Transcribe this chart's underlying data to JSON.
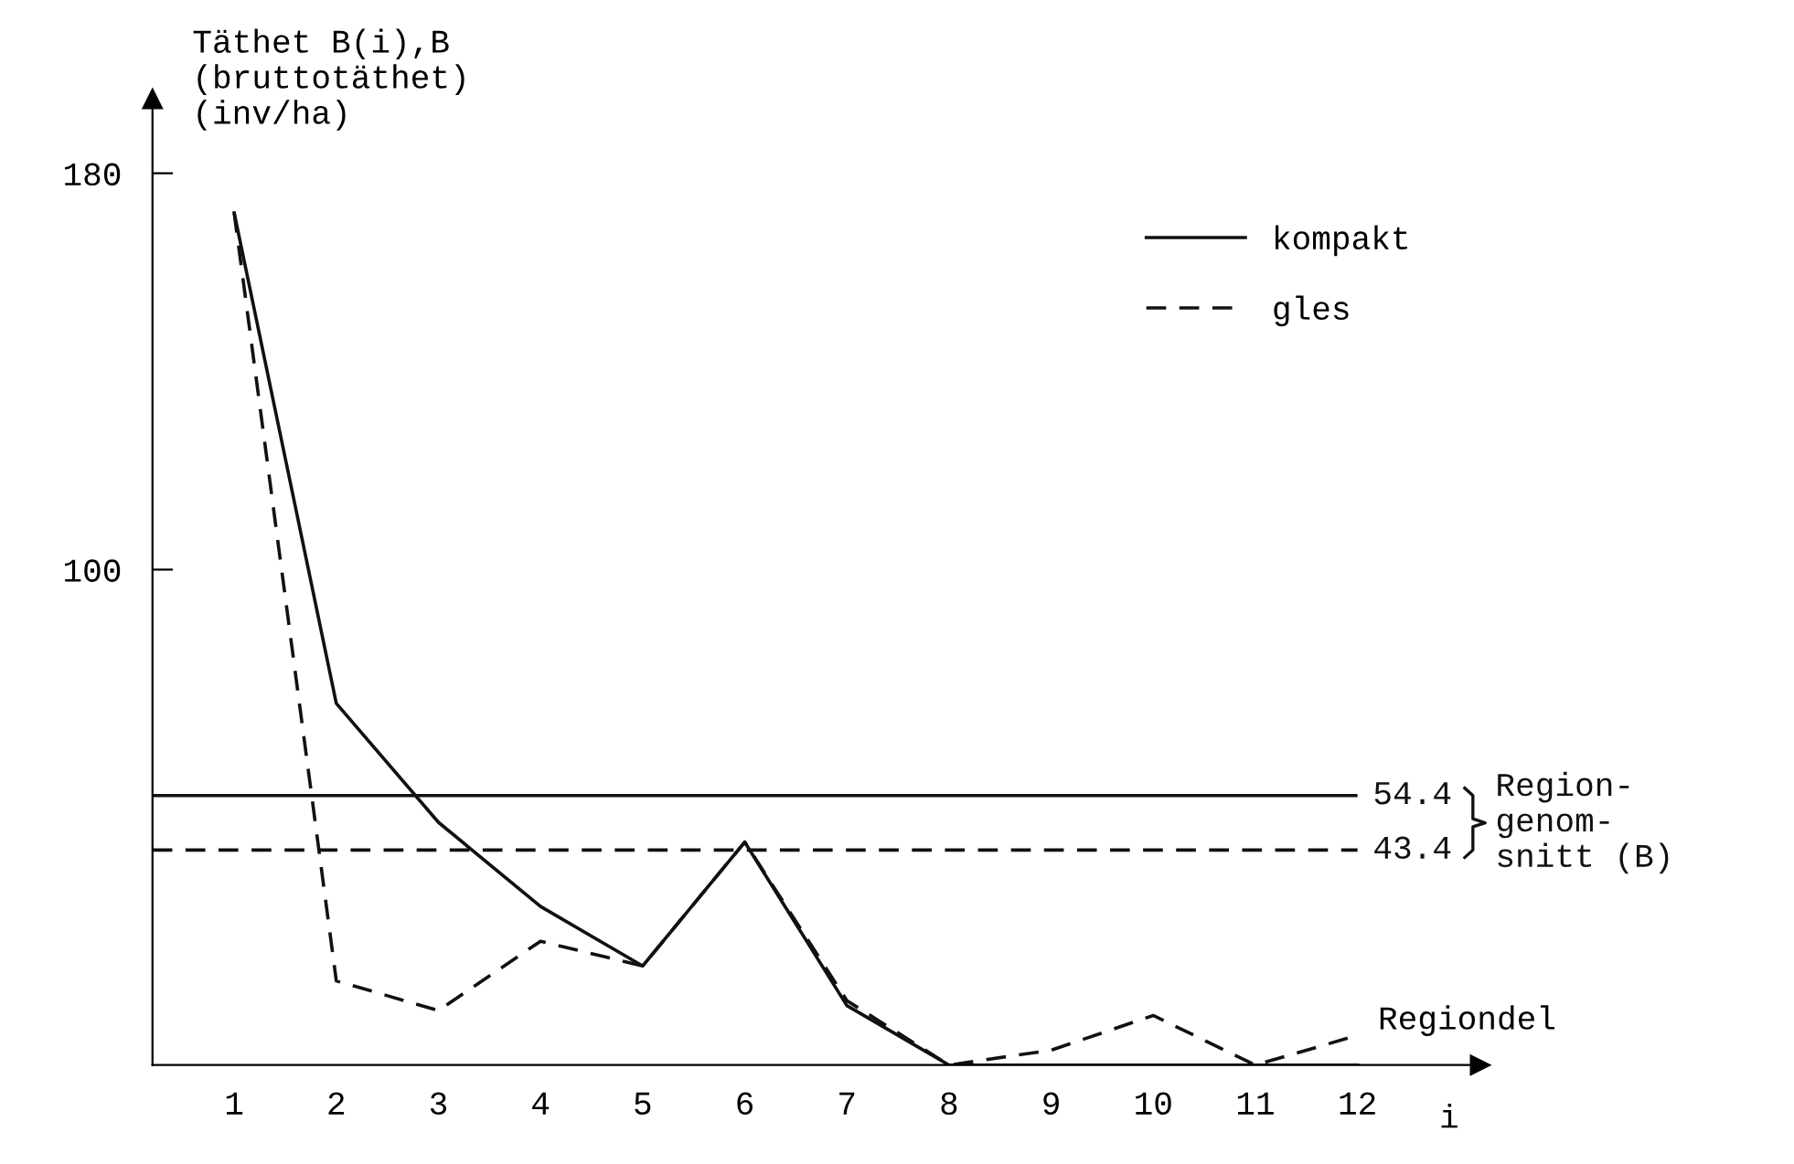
{
  "chart_data": {
    "type": "line",
    "ylabel": "Täthet B(i),B\n(bruttotäthet)\n(inv/ha)",
    "xlabel": "Regiondel",
    "categories": [
      "1",
      "2",
      "3",
      "4",
      "5",
      "6",
      "7",
      "8",
      "9",
      "10",
      "11",
      "12"
    ],
    "series": [
      {
        "name": "kompakt",
        "color": "#111111",
        "line_style": "solid",
        "values": [
          172,
          73,
          49,
          32,
          20,
          45,
          12,
          0,
          0,
          0,
          0,
          0
        ]
      },
      {
        "name": "gles",
        "color": "#111111",
        "line_style": "dashed",
        "values": [
          172,
          17,
          11,
          25,
          20,
          45,
          13,
          0,
          3,
          10,
          0,
          6
        ]
      }
    ],
    "ylim": [
      0,
      195
    ],
    "yticks": [
      100,
      180
    ],
    "ref_lines": [
      {
        "axis": "y",
        "value": 54.4,
        "label": "54.4",
        "color": "#111111",
        "line_style": "solid"
      },
      {
        "axis": "y",
        "value": 43.4,
        "label": "43.4",
        "color": "#111111",
        "line_style": "dashed"
      }
    ],
    "annotations": [
      "Region-\ngenom-\nsnitt (B)",
      "i"
    ],
    "grid": false,
    "legend": "top right",
    "marker": "none"
  }
}
